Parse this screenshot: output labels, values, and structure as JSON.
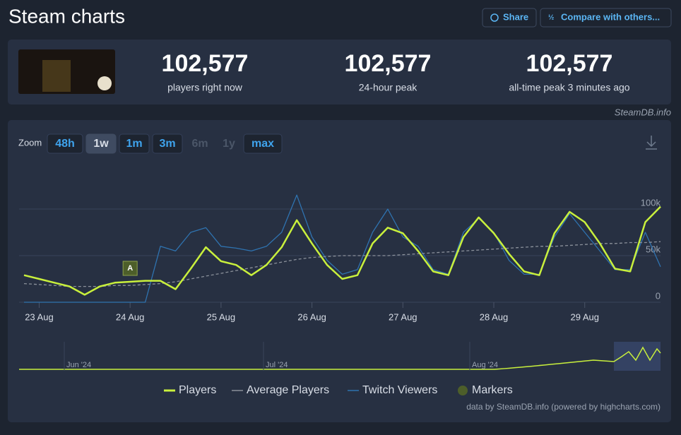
{
  "header": {
    "title": "Steam charts",
    "share": "Share",
    "compare": "Compare with others..."
  },
  "stats": [
    {
      "value": "102,577",
      "label": "players right now"
    },
    {
      "value": "102,577",
      "label": "24-hour peak"
    },
    {
      "value": "102,577",
      "label": "all-time peak 3 minutes ago"
    }
  ],
  "source": "SteamDB.info",
  "zoom": {
    "label": "Zoom",
    "buttons": [
      "48h",
      "1w",
      "1m",
      "3m",
      "6m",
      "1y",
      "max"
    ],
    "active": "1w",
    "disabled": [
      "6m",
      "1y"
    ]
  },
  "chart_data": {
    "type": "line",
    "categories": [
      null,
      "23 Aug",
      null,
      null,
      null,
      null,
      null,
      "24 Aug",
      null,
      null,
      null,
      null,
      null,
      "25 Aug",
      null,
      null,
      null,
      null,
      null,
      "26 Aug",
      null,
      null,
      null,
      null,
      null,
      "27 Aug",
      null,
      null,
      null,
      null,
      null,
      "28 Aug",
      null,
      null,
      null,
      null,
      null,
      "29 Aug",
      null,
      null,
      null,
      null,
      null
    ],
    "series": [
      {
        "name": "Players",
        "color": "#c9f03c",
        "values": [
          29000,
          25000,
          21000,
          17000,
          8000,
          17000,
          21000,
          22000,
          23000,
          23000,
          14000,
          36000,
          59000,
          44000,
          40000,
          29000,
          40000,
          59000,
          88000,
          63000,
          40000,
          25000,
          29000,
          63000,
          80000,
          74000,
          55000,
          33000,
          29000,
          70000,
          91000,
          74000,
          52000,
          33000,
          29000,
          74000,
          97000,
          86000,
          63000,
          36000,
          33000,
          86000,
          102577
        ]
      },
      {
        "name": "Average Players",
        "color": "#8b919b",
        "dashed": true,
        "values": [
          20000,
          19000,
          18000,
          17000,
          17000,
          17000,
          18000,
          18000,
          19000,
          20000,
          22000,
          25000,
          28000,
          31000,
          34000,
          37000,
          40000,
          43000,
          46000,
          48000,
          49000,
          50000,
          50000,
          50000,
          50000,
          51000,
          52000,
          53000,
          54000,
          55000,
          56000,
          57000,
          58000,
          59000,
          60000,
          60000,
          61000,
          62000,
          63000,
          63000,
          64000,
          64000,
          65000
        ]
      },
      {
        "name": "Twitch Viewers",
        "color": "#2f73b0",
        "values": [
          0,
          0,
          0,
          0,
          0,
          0,
          0,
          0,
          0,
          60000,
          55000,
          75000,
          80000,
          60000,
          58000,
          55000,
          60000,
          75000,
          115000,
          70000,
          45000,
          30000,
          35000,
          75000,
          100000,
          70000,
          60000,
          35000,
          30000,
          75000,
          90000,
          75000,
          45000,
          30000,
          30000,
          70000,
          95000,
          75000,
          55000,
          35000,
          35000,
          75000,
          38000
        ]
      }
    ],
    "markers": {
      "name": "Markers",
      "color": "#4d5e2a",
      "items": [
        {
          "text": "A",
          "at": "24 Aug"
        }
      ]
    },
    "ylim": [
      0,
      150000
    ],
    "yticks": [
      0,
      {
        "value": 50000,
        "label": "50k"
      },
      {
        "value": 100000,
        "label": "100k"
      }
    ],
    "grid": true,
    "navigator": [
      "Jun '24",
      "Jul '24",
      "Aug '24"
    ],
    "credit": "data by SteamDB.info (powered by highcharts.com)"
  }
}
